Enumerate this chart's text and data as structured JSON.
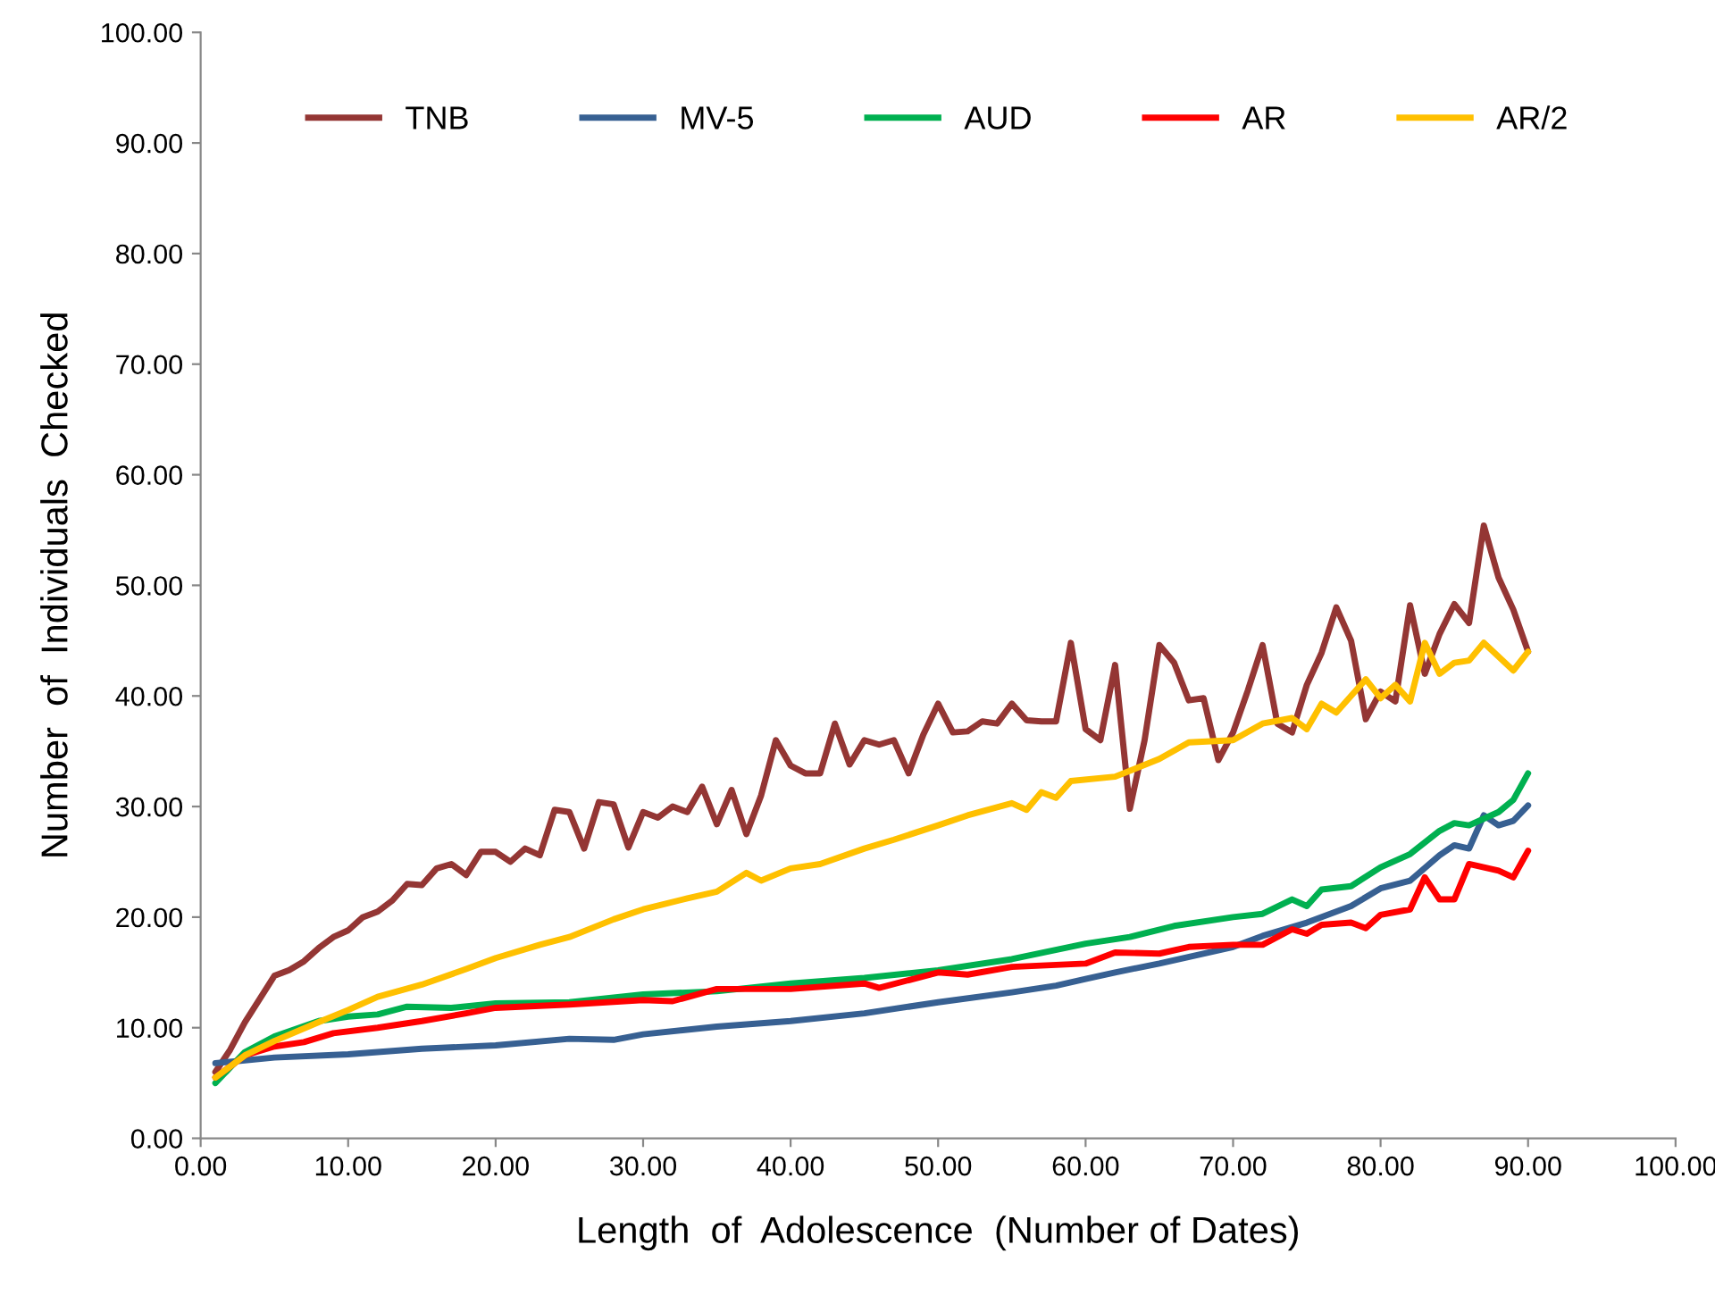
{
  "chart_data": {
    "type": "line",
    "xlabel": "Length  of  Adolescence  (Number of Dates)",
    "ylabel": "Number  of  Individuals  Checked",
    "xlim": [
      0,
      100
    ],
    "ylim": [
      0,
      100
    ],
    "xticks": [
      {
        "value": 0,
        "label": "0.00"
      },
      {
        "value": 10,
        "label": "10.00"
      },
      {
        "value": 20,
        "label": "20.00"
      },
      {
        "value": 30,
        "label": "30.00"
      },
      {
        "value": 40,
        "label": "40.00"
      },
      {
        "value": 50,
        "label": "50.00"
      },
      {
        "value": 60,
        "label": "60.00"
      },
      {
        "value": 70,
        "label": "70.00"
      },
      {
        "value": 80,
        "label": "80.00"
      },
      {
        "value": 90,
        "label": "90.00"
      },
      {
        "value": 100,
        "label": "100.00"
      }
    ],
    "yticks": [
      {
        "value": 0,
        "label": "0.00"
      },
      {
        "value": 10,
        "label": "10.00"
      },
      {
        "value": 20,
        "label": "20.00"
      },
      {
        "value": 30,
        "label": "30.00"
      },
      {
        "value": 40,
        "label": "40.00"
      },
      {
        "value": 50,
        "label": "50.00"
      },
      {
        "value": 60,
        "label": "60.00"
      },
      {
        "value": 70,
        "label": "70.00"
      },
      {
        "value": 80,
        "label": "80.00"
      },
      {
        "value": 90,
        "label": "90.00"
      },
      {
        "value": 100,
        "label": "100.00"
      }
    ],
    "grid": false,
    "legend": "top",
    "marker": "none",
    "line_style": "solid",
    "series": [
      {
        "name": "TNB",
        "color": "#943634",
        "x": [
          1,
          2,
          3,
          4,
          5,
          6,
          7,
          8,
          9,
          10,
          11,
          12,
          13,
          14,
          15,
          16,
          17,
          18,
          19,
          20,
          21,
          22,
          23,
          24,
          25,
          26,
          27,
          28,
          29,
          30,
          31,
          32,
          33,
          34,
          35,
          36,
          37,
          38,
          39,
          40,
          41,
          42,
          43,
          44,
          45,
          46,
          47,
          48,
          49,
          50,
          51,
          52,
          53,
          54,
          55,
          56,
          57,
          58,
          59,
          60,
          61,
          62,
          63,
          64,
          65,
          66,
          67,
          68,
          69,
          70,
          71,
          72,
          73,
          74,
          75,
          76,
          77,
          78,
          79,
          80,
          81,
          82,
          83,
          84,
          85,
          86,
          87,
          88,
          89,
          90
        ],
        "values": [
          6,
          8,
          10.5,
          12.6,
          14.7,
          15.2,
          16,
          17.2,
          18.2,
          18.8,
          20,
          20.5,
          21.5,
          23,
          22.9,
          24.4,
          24.8,
          23.8,
          25.9,
          25.9,
          25,
          26.2,
          25.6,
          29.7,
          29.5,
          26.2,
          30.4,
          30.2,
          26.3,
          29.5,
          29,
          30,
          29.5,
          31.8,
          28.4,
          31.5,
          27.5,
          31,
          36,
          33.7,
          33,
          33,
          37.5,
          33.8,
          36,
          35.6,
          36,
          33,
          36.5,
          39.3,
          36.7,
          36.8,
          37.7,
          37.5,
          39.3,
          37.8,
          37.7,
          37.7,
          44.8,
          37,
          36,
          42.8,
          29.8,
          36,
          44.6,
          43,
          39.6,
          39.8,
          34.2,
          36.7,
          40.5,
          44.6,
          37.5,
          36.7,
          41,
          43.9,
          48,
          45,
          37.9,
          40.4,
          39.5,
          48.2,
          42,
          45.6,
          48.3,
          46.6,
          55.4,
          50.7,
          47.8,
          44
        ]
      },
      {
        "name": "MV-5",
        "color": "#376092",
        "x": [
          1,
          5,
          10,
          15,
          20,
          25,
          28,
          30,
          35,
          40,
          45,
          50,
          55,
          58,
          60,
          62,
          65,
          70,
          72,
          75,
          78,
          80,
          82,
          84,
          85,
          86,
          87,
          88,
          89,
          90
        ],
        "values": [
          6.8,
          7.3,
          7.6,
          8.1,
          8.4,
          9,
          8.9,
          9.4,
          10.1,
          10.6,
          11.3,
          12.3,
          13.2,
          13.8,
          14.4,
          15,
          15.8,
          17.3,
          18.3,
          19.5,
          21,
          22.6,
          23.3,
          25.6,
          26.5,
          26.2,
          29.2,
          28.3,
          28.7,
          30.1
        ]
      },
      {
        "name": "AUD",
        "color": "#00b050",
        "x": [
          1,
          3,
          5,
          8,
          10,
          12,
          14,
          17,
          20,
          25,
          30,
          35,
          40,
          45,
          50,
          55,
          60,
          63,
          66,
          70,
          72,
          74,
          75,
          76,
          78,
          80,
          82,
          84,
          85,
          86,
          88,
          89,
          90
        ],
        "values": [
          5,
          7.8,
          9.2,
          10.6,
          11,
          11.2,
          11.9,
          11.8,
          12.2,
          12.3,
          13,
          13.3,
          14,
          14.5,
          15.2,
          16.2,
          17.6,
          18.2,
          19.2,
          20,
          20.3,
          21.6,
          21,
          22.5,
          22.8,
          24.5,
          25.7,
          27.8,
          28.5,
          28.3,
          29.5,
          30.6,
          33
        ]
      },
      {
        "name": "AR",
        "color": "#ff0000",
        "x": [
          1,
          3,
          5,
          7,
          9,
          12,
          15,
          18,
          20,
          25,
          30,
          32,
          35,
          40,
          45,
          46,
          50,
          52,
          55,
          60,
          62,
          65,
          67,
          70,
          72,
          74,
          75,
          76,
          78,
          79,
          80,
          82,
          83,
          84,
          85,
          86,
          88,
          89,
          90
        ],
        "values": [
          5.5,
          7.5,
          8.3,
          8.7,
          9.5,
          10,
          10.6,
          11.3,
          11.8,
          12.1,
          12.5,
          12.4,
          13.5,
          13.5,
          14,
          13.6,
          15,
          14.8,
          15.5,
          15.8,
          16.8,
          16.7,
          17.3,
          17.5,
          17.5,
          18.9,
          18.5,
          19.3,
          19.5,
          19,
          20.2,
          20.7,
          23.6,
          21.6,
          21.6,
          24.8,
          24.2,
          23.6,
          26
        ]
      },
      {
        "name": "AR/2",
        "color": "#ffc000",
        "x": [
          1,
          3,
          5,
          8,
          10,
          12,
          15,
          18,
          20,
          23,
          25,
          28,
          30,
          33,
          35,
          37,
          38,
          40,
          42,
          45,
          47,
          50,
          52,
          55,
          56,
          57,
          58,
          59,
          62,
          65,
          67,
          70,
          72,
          74,
          75,
          76,
          77,
          79,
          80,
          81,
          82,
          83,
          84,
          85,
          86,
          87,
          89,
          90
        ],
        "values": [
          5.5,
          7.5,
          8.8,
          10.5,
          11.6,
          12.8,
          13.9,
          15.3,
          16.3,
          17.5,
          18.2,
          19.8,
          20.7,
          21.7,
          22.3,
          24,
          23.3,
          24.4,
          24.8,
          26.2,
          27,
          28.3,
          29.2,
          30.3,
          29.7,
          31.3,
          30.8,
          32.3,
          32.7,
          34.3,
          35.8,
          36,
          37.5,
          38,
          37,
          39.3,
          38.5,
          41.5,
          39.8,
          41,
          39.5,
          44.8,
          42,
          43,
          43.2,
          44.8,
          42.3,
          44
        ]
      }
    ]
  }
}
